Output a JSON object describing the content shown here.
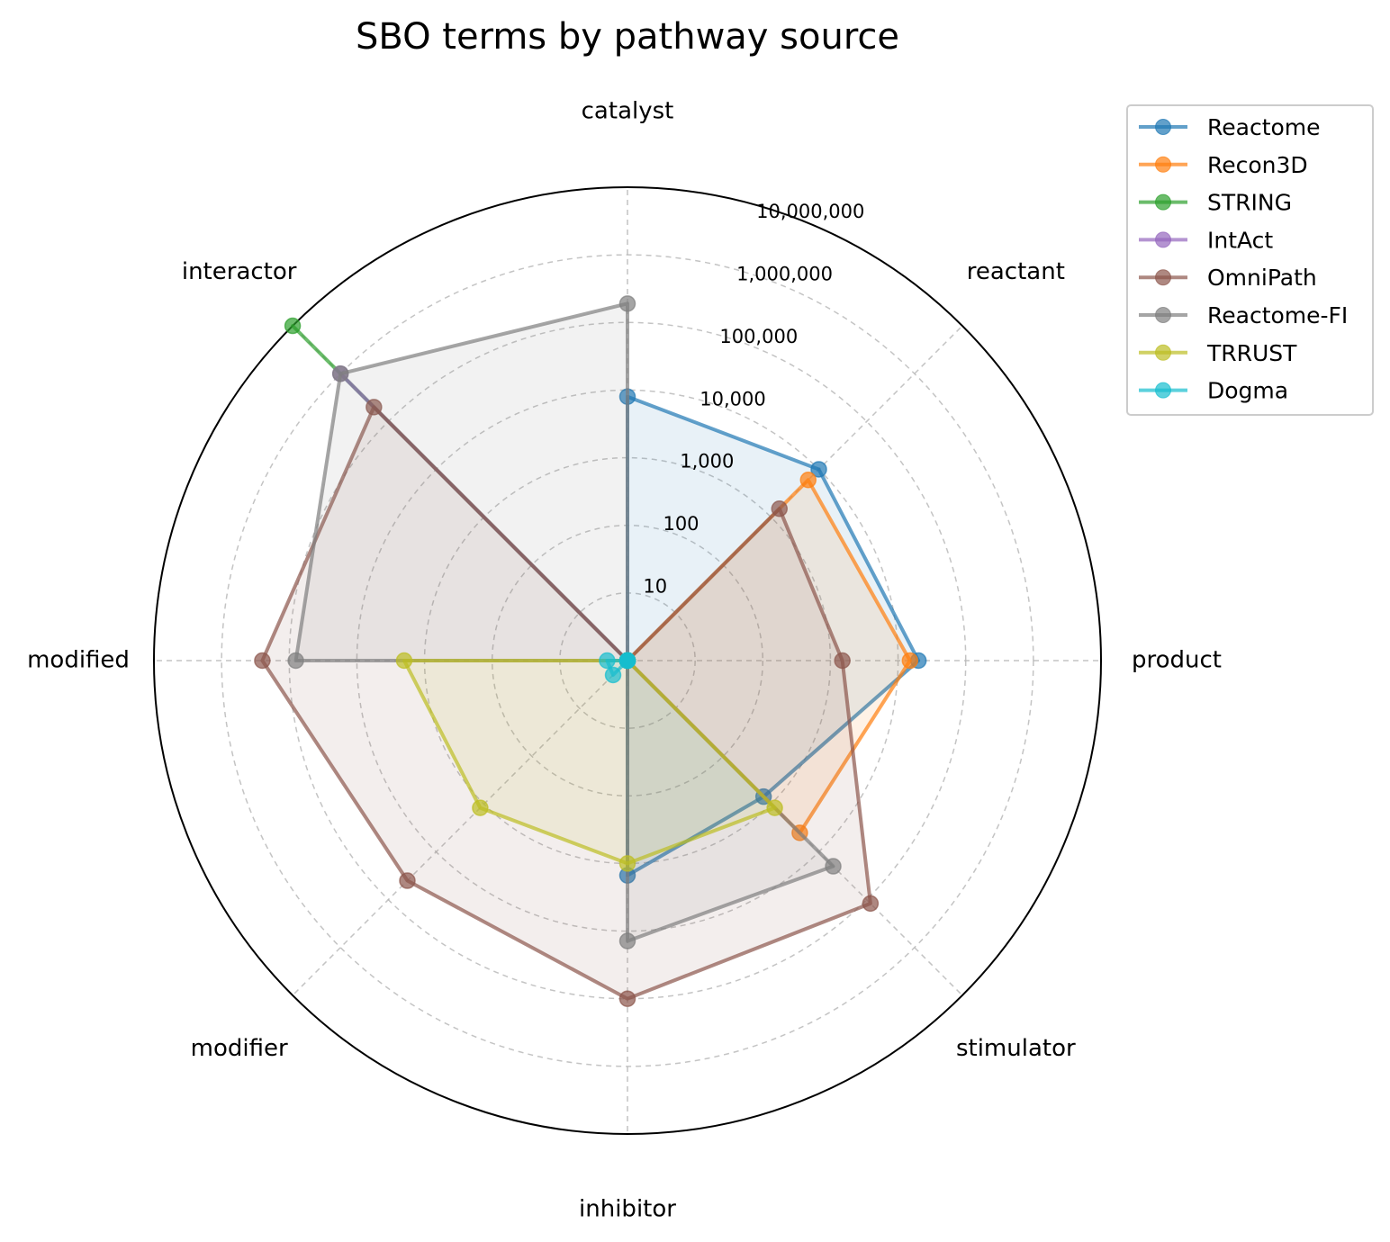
{
  "chart_data": {
    "type": "radar",
    "title": "SBO terms by pathway source",
    "scale": "log",
    "categories": [
      "catalyst",
      "reactant",
      "product",
      "stimulator",
      "inhibitor",
      "modifier",
      "modified",
      "interactor"
    ],
    "radial_ticks": [
      {
        "value": 10,
        "label": "10"
      },
      {
        "value": 100,
        "label": "100"
      },
      {
        "value": 1000,
        "label": "1,000"
      },
      {
        "value": 10000,
        "label": "10,000"
      },
      {
        "value": 100000,
        "label": "100,000"
      },
      {
        "value": 1000000,
        "label": "1,000,000"
      },
      {
        "value": 10000000,
        "label": "10,000,000"
      }
    ],
    "rlim": [
      1,
      10000000
    ],
    "grid": true,
    "legend_position": "outside top-right",
    "series": [
      {
        "name": "Reactome",
        "color": "#1f77b4",
        "values": [
          8000,
          10000,
          20000,
          700,
          1500,
          0,
          0,
          0
        ]
      },
      {
        "name": "Recon3D",
        "color": "#ff7f0e",
        "values": [
          0,
          6000,
          15000,
          4000,
          0,
          0,
          0,
          0
        ]
      },
      {
        "name": "STRING",
        "color": "#2ca02c",
        "values": [
          0,
          0,
          0,
          0,
          0,
          0,
          0,
          10000000
        ]
      },
      {
        "name": "IntAct",
        "color": "#9467bd",
        "values": [
          0,
          0,
          0,
          0,
          0,
          0,
          0,
          1000000
        ]
      },
      {
        "name": "OmniPath",
        "color": "#8c564b",
        "values": [
          0,
          1500,
          1500,
          120000,
          100000,
          40000,
          250000,
          200000
        ]
      },
      {
        "name": "Reactome-FI",
        "color": "#7f7f7f",
        "values": [
          190000,
          0,
          0,
          20000,
          14000,
          0,
          80000,
          1000000
        ]
      },
      {
        "name": "TRRUST",
        "color": "#bcbd22",
        "values": [
          0,
          0,
          0,
          1200,
          1000,
          1200,
          2000,
          0
        ]
      },
      {
        "name": "Dogma",
        "color": "#17becf",
        "values": [
          1,
          1,
          1,
          1,
          1,
          2,
          2,
          1
        ]
      }
    ]
  }
}
